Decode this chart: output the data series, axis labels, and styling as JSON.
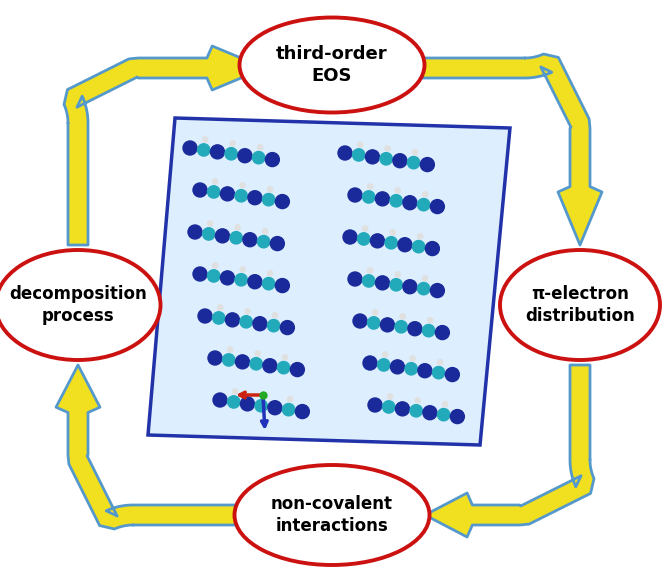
{
  "bg_color": "#ffffff",
  "arrow_yellow": "#f0e020",
  "arrow_cyan_edge": "#5599cc",
  "ellipse_red": "#cc1111",
  "text_color": "#000000",
  "labels": {
    "top": "third-order\nEOS",
    "right": "π-electron\ndistribution",
    "bottom": "non-covalent\ninteractions",
    "left": "decomposition\nprocess"
  },
  "crystal_border": "#2233aa",
  "mol_blue": "#1a2a9a",
  "mol_teal": "#22aabb",
  "mol_white": "#e0e0e0",
  "figsize": [
    6.64,
    5.83
  ],
  "dpi": 100
}
